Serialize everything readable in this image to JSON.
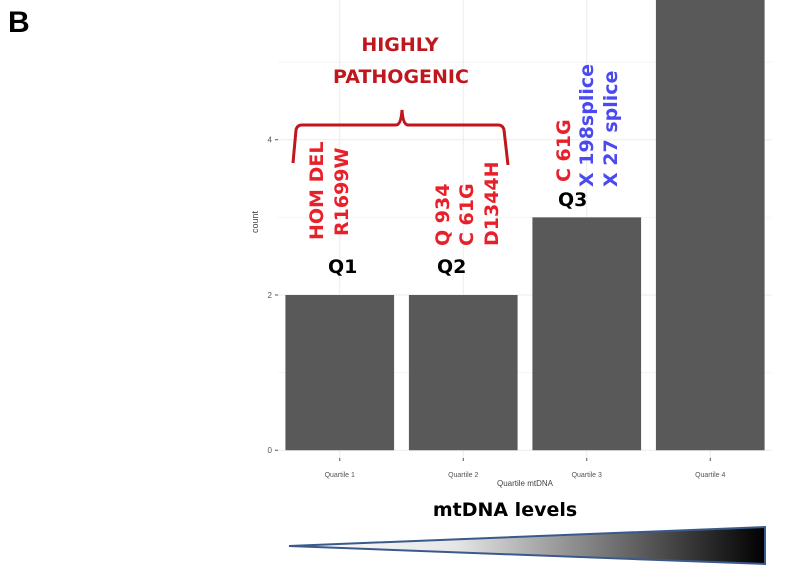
{
  "panel_label": "B",
  "chart_data": {
    "type": "bar",
    "categories": [
      "Quartile 1",
      "Quartile 2",
      "Quartile 3",
      "Quartile 4"
    ],
    "values": [
      2,
      2,
      3,
      6
    ],
    "xlabel": "Quartile mtDNA",
    "ylabel": "count",
    "yticks": [
      0,
      2,
      4
    ],
    "ylim": [
      -0.1,
      5.8
    ],
    "grid": true,
    "bar_color": "#595959"
  },
  "annotations": {
    "highly_pathogenic_line1": "HIGHLY",
    "highly_pathogenic_line2": "PATHOGENIC",
    "q1_label": "Q1",
    "q2_label": "Q2",
    "q3_label": "Q3",
    "q1_variants": [
      "HOM DEL",
      "R1699W"
    ],
    "q2_variants": [
      "Q 934",
      "C 61G",
      "D1344H"
    ],
    "q3_variants_red": [
      "C 61G"
    ],
    "q3_variants_blue": [
      "X 198splice",
      "X 27 splice"
    ]
  },
  "mtdna_label": "mtDNA levels",
  "colors": {
    "red": "#e8202a",
    "darkred": "#c0161e",
    "blue": "#4a4af0",
    "bar": "#595959"
  }
}
